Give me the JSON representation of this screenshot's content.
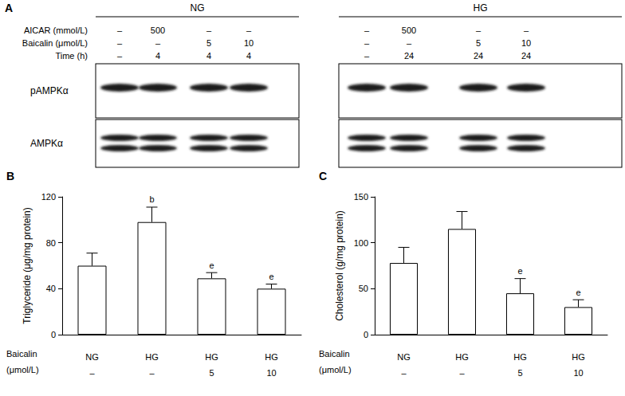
{
  "blot": {
    "label": "A",
    "row_labels": [
      "AICAR (mmol/L)",
      "Baicalin (μmol/L)",
      "Time (h)"
    ],
    "groups": [
      {
        "name": "NG",
        "rows": [
          [
            "–",
            "500",
            "–",
            "–"
          ],
          [
            "–",
            "–",
            "5",
            "10"
          ],
          [
            "–",
            "4",
            "4",
            "4"
          ]
        ]
      },
      {
        "name": "HG",
        "rows": [
          [
            "–",
            "500",
            "–",
            "–"
          ],
          [
            "–",
            "–",
            "5",
            "10"
          ],
          [
            "–",
            "24",
            "24",
            "24"
          ]
        ]
      }
    ],
    "bands": [
      "pAMPKα",
      "AMPKα"
    ]
  },
  "chart_data": [
    {
      "type": "bar",
      "title": "B",
      "ylabel": "Triglyceride (μg/mg protein)",
      "categories": [
        "NG",
        "HG",
        "HG",
        "HG"
      ],
      "row_labels": [
        "Baicalin",
        "(μmol/L)"
      ],
      "doses": [
        "–",
        "–",
        "5",
        "10"
      ],
      "values": [
        60,
        98,
        49,
        40
      ],
      "errors": [
        11,
        13,
        5,
        4
      ],
      "annotations": [
        null,
        "b",
        "e",
        "e"
      ],
      "color": "#ffffff",
      "ylim": [
        0,
        120
      ],
      "yticks": [
        0,
        40,
        80,
        120
      ],
      "grid": false
    },
    {
      "type": "bar",
      "title": "C",
      "ylabel": "Cholesterol (g/mg protein)",
      "categories": [
        "NG",
        "HG",
        "HG",
        "HG"
      ],
      "row_labels": [
        "Baicalin",
        "(μmol/L)"
      ],
      "doses": [
        "–",
        "–",
        "5",
        "10"
      ],
      "values": [
        78,
        115,
        45,
        30
      ],
      "errors": [
        17,
        19,
        16,
        8
      ],
      "annotations": [
        null,
        null,
        "e",
        "e"
      ],
      "color": "#ffffff",
      "ylim": [
        0,
        150
      ],
      "yticks": [
        0,
        50,
        100,
        150
      ],
      "grid": false
    }
  ]
}
